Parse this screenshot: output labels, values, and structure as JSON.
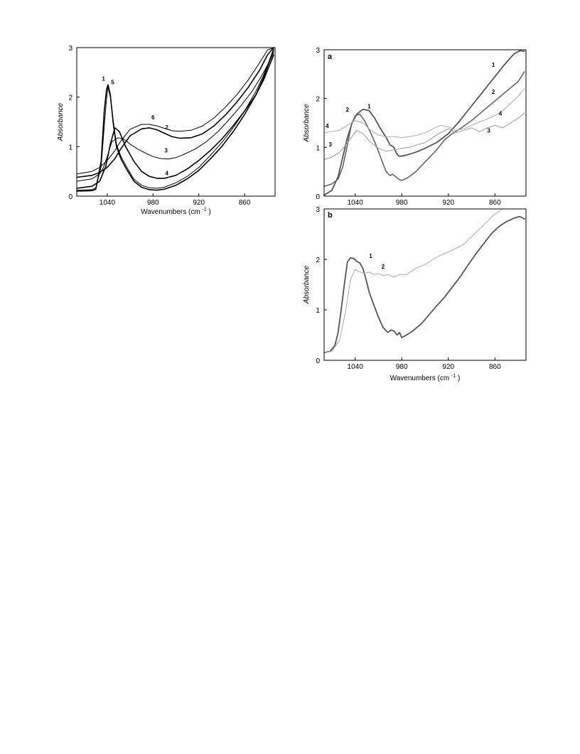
{
  "chart_data": [
    {
      "id": "left",
      "type": "line",
      "xlabel": "Wavenumbers (cm",
      "xlabel_sup": "-1",
      "xlabel_close": ")",
      "ylabel": "Absorbance",
      "xlim": [
        1080,
        820
      ],
      "ylim": [
        0,
        3
      ],
      "x_ticks": [
        {
          "value": 1040,
          "label": "1040"
        },
        {
          "value": 980,
          "label": "980"
        },
        {
          "value": 920,
          "label": "920"
        },
        {
          "value": 860,
          "label": "860"
        }
      ],
      "y_ticks": [
        {
          "value": 0,
          "label": "0"
        },
        {
          "value": 1,
          "label": "1"
        },
        {
          "value": 2,
          "label": "2"
        },
        {
          "value": 3,
          "label": "3"
        }
      ],
      "grid": false,
      "series": [
        {
          "name": "1",
          "color": "#000000",
          "x": [
            1080,
            1060,
            1055,
            1048,
            1044,
            1041,
            1039,
            1036,
            1032,
            1028,
            1022,
            1015,
            1005,
            995,
            985,
            975,
            965,
            950,
            935,
            920,
            905,
            890,
            875,
            860,
            845,
            835,
            828,
            822
          ],
          "y": [
            0.1,
            0.11,
            0.14,
            0.7,
            1.7,
            2.15,
            2.25,
            2.05,
            1.45,
            1.0,
            0.75,
            0.55,
            0.3,
            0.18,
            0.13,
            0.12,
            0.14,
            0.22,
            0.35,
            0.52,
            0.75,
            1.0,
            1.3,
            1.65,
            2.05,
            2.4,
            2.7,
            2.95
          ]
        },
        {
          "name": "5",
          "color": "#000000",
          "x": [
            1080,
            1060,
            1055,
            1048,
            1044,
            1041,
            1039,
            1036,
            1032,
            1028,
            1022,
            1015,
            1005,
            995,
            985,
            975,
            965,
            950,
            935,
            920,
            905,
            890,
            875,
            860,
            845,
            835,
            828,
            822
          ],
          "y": [
            0.12,
            0.13,
            0.17,
            0.6,
            1.4,
            1.95,
            2.2,
            2.0,
            1.5,
            1.05,
            0.8,
            0.6,
            0.34,
            0.22,
            0.17,
            0.16,
            0.18,
            0.27,
            0.4,
            0.58,
            0.82,
            1.08,
            1.38,
            1.72,
            2.12,
            2.45,
            2.72,
            2.98
          ]
        },
        {
          "name": "6",
          "color": "#000000",
          "x": [
            1080,
            1060,
            1050,
            1040,
            1030,
            1022,
            1010,
            995,
            985,
            975,
            965,
            955,
            945,
            930,
            915,
            900,
            885,
            870,
            855,
            840,
            830,
            822
          ],
          "y": [
            0.45,
            0.5,
            0.58,
            0.72,
            0.92,
            1.12,
            1.35,
            1.45,
            1.45,
            1.42,
            1.37,
            1.32,
            1.31,
            1.33,
            1.42,
            1.58,
            1.8,
            2.05,
            2.35,
            2.7,
            2.95,
            3.1
          ]
        },
        {
          "name": "2",
          "color": "#000000",
          "x": [
            1080,
            1060,
            1050,
            1040,
            1030,
            1022,
            1010,
            995,
            985,
            975,
            965,
            955,
            945,
            930,
            915,
            900,
            885,
            870,
            855,
            840,
            830,
            822
          ],
          "y": [
            0.38,
            0.42,
            0.48,
            0.58,
            0.76,
            0.96,
            1.22,
            1.36,
            1.38,
            1.34,
            1.27,
            1.2,
            1.17,
            1.18,
            1.26,
            1.42,
            1.64,
            1.9,
            2.2,
            2.55,
            2.85,
            3.05
          ]
        },
        {
          "name": "3",
          "color": "#000000",
          "x": [
            1080,
            1060,
            1050,
            1045,
            1040,
            1034,
            1026,
            1018,
            1010,
            1000,
            990,
            980,
            970,
            960,
            950,
            940,
            925,
            910,
            895,
            880,
            865,
            850,
            838,
            828,
            822
          ],
          "y": [
            0.3,
            0.35,
            0.45,
            0.58,
            0.8,
            1.1,
            1.18,
            1.15,
            1.05,
            0.95,
            0.87,
            0.8,
            0.76,
            0.75,
            0.78,
            0.84,
            0.95,
            1.1,
            1.3,
            1.55,
            1.82,
            2.12,
            2.42,
            2.7,
            2.9
          ]
        },
        {
          "name": "4",
          "color": "#000000",
          "x": [
            1080,
            1060,
            1050,
            1042,
            1036,
            1030,
            1024,
            1016,
            1005,
            995,
            985,
            975,
            965,
            950,
            935,
            920,
            905,
            890,
            875,
            860,
            845,
            835,
            828,
            822
          ],
          "y": [
            0.16,
            0.2,
            0.3,
            0.6,
            1.05,
            1.38,
            1.3,
            1.0,
            0.7,
            0.5,
            0.4,
            0.36,
            0.36,
            0.42,
            0.55,
            0.72,
            0.92,
            1.15,
            1.42,
            1.72,
            2.05,
            2.35,
            2.62,
            2.85
          ]
        }
      ],
      "curve_labels": [
        {
          "text": "1",
          "x": 1045,
          "y": 2.33
        },
        {
          "text": "5",
          "x": 1033,
          "y": 2.26
        },
        {
          "text": "6",
          "x": 980,
          "y": 1.55
        },
        {
          "text": "2",
          "x": 962,
          "y": 1.35
        },
        {
          "text": "3",
          "x": 963,
          "y": 0.88
        },
        {
          "text": "4",
          "x": 962,
          "y": 0.42
        }
      ]
    },
    {
      "id": "right-a",
      "type": "line",
      "panel": "a",
      "xlabel": "",
      "ylabel": "Absorbance",
      "xlim": [
        1080,
        820
      ],
      "ylim": [
        0,
        3
      ],
      "x_ticks": [
        {
          "value": 1040,
          "label": "1040"
        },
        {
          "value": 980,
          "label": "980"
        },
        {
          "value": 920,
          "label": "920"
        },
        {
          "value": 860,
          "label": "860"
        }
      ],
      "y_ticks": [
        {
          "value": 0,
          "label": "0"
        },
        {
          "value": 1,
          "label": "1"
        },
        {
          "value": 2,
          "label": "2"
        },
        {
          "value": 3,
          "label": "3"
        }
      ],
      "grid": false,
      "series": [
        {
          "name": "1",
          "color": "#555555",
          "x": [
            1080,
            1070,
            1062,
            1056,
            1050,
            1044,
            1038,
            1030,
            1022,
            1015,
            1008,
            1000,
            995,
            990,
            987,
            984,
            980,
            972,
            962,
            950,
            935,
            920,
            905,
            890,
            875,
            860,
            850,
            842,
            835,
            828,
            822
          ],
          "y": [
            0.02,
            0.12,
            0.4,
            0.8,
            1.2,
            1.5,
            1.68,
            1.78,
            1.75,
            1.6,
            1.4,
            1.2,
            1.05,
            1.0,
            0.88,
            0.82,
            0.82,
            0.85,
            0.9,
            0.98,
            1.1,
            1.28,
            1.55,
            1.85,
            2.15,
            2.45,
            2.65,
            2.8,
            2.92,
            2.98,
            2.97
          ]
        },
        {
          "name": "2",
          "color": "#666666",
          "x": [
            1080,
            1070,
            1062,
            1056,
            1050,
            1045,
            1040,
            1034,
            1028,
            1020,
            1012,
            1005,
            1000,
            995,
            992,
            988,
            984,
            980,
            972,
            962,
            950,
            935,
            925,
            915,
            905,
            890,
            875,
            860,
            845,
            830,
            822
          ],
          "y": [
            0.2,
            0.25,
            0.35,
            0.6,
            1.05,
            1.45,
            1.65,
            1.68,
            1.55,
            1.3,
            1.0,
            0.7,
            0.5,
            0.42,
            0.45,
            0.4,
            0.35,
            0.32,
            0.38,
            0.5,
            0.7,
            0.95,
            1.15,
            1.28,
            1.38,
            1.55,
            1.75,
            1.95,
            2.15,
            2.35,
            2.55
          ]
        },
        {
          "name": "4",
          "color": "#aaaaaa",
          "x": [
            1080,
            1060,
            1050,
            1040,
            1030,
            1020,
            1010,
            1000,
            990,
            980,
            970,
            960,
            950,
            940,
            930,
            920,
            910,
            900,
            890,
            880,
            870,
            860,
            850,
            840,
            830,
            822
          ],
          "y": [
            1.3,
            1.35,
            1.45,
            1.55,
            1.5,
            1.35,
            1.25,
            1.22,
            1.22,
            1.2,
            1.22,
            1.25,
            1.3,
            1.38,
            1.45,
            1.42,
            1.35,
            1.38,
            1.45,
            1.52,
            1.58,
            1.65,
            1.75,
            1.9,
            2.05,
            2.2
          ]
        },
        {
          "name": "3",
          "color": "#999999",
          "x": [
            1080,
            1070,
            1060,
            1052,
            1045,
            1038,
            1030,
            1020,
            1010,
            1000,
            990,
            980,
            970,
            960,
            950,
            940,
            930,
            920,
            910,
            900,
            890,
            880,
            870,
            860,
            850,
            840,
            830,
            822
          ],
          "y": [
            0.75,
            0.8,
            0.9,
            1.05,
            1.2,
            1.35,
            1.28,
            1.1,
            0.98,
            0.92,
            0.95,
            0.98,
            1.0,
            1.05,
            1.1,
            1.2,
            1.3,
            1.38,
            1.3,
            1.35,
            1.4,
            1.32,
            1.4,
            1.45,
            1.4,
            1.5,
            1.6,
            1.7
          ]
        }
      ],
      "curve_labels": [
        {
          "text": "1",
          "x": 1022,
          "y": 1.8
        },
        {
          "text": "2",
          "x": 1050,
          "y": 1.73
        },
        {
          "text": "4",
          "x": 1076,
          "y": 1.4
        },
        {
          "text": "3",
          "x": 1072,
          "y": 1.02
        },
        {
          "text": "1",
          "x": 862,
          "y": 2.65
        },
        {
          "text": "2",
          "x": 862,
          "y": 2.1
        },
        {
          "text": "4",
          "x": 853,
          "y": 1.65
        },
        {
          "text": "3",
          "x": 868,
          "y": 1.3
        }
      ]
    },
    {
      "id": "right-b",
      "type": "line",
      "panel": "b",
      "xlabel": "Wavenumbers (cm",
      "xlabel_sup": "-1",
      "xlabel_close": ")",
      "ylabel": "Absorbance",
      "xlim": [
        1080,
        820
      ],
      "ylim": [
        0,
        3
      ],
      "x_ticks": [
        {
          "value": 1040,
          "label": "1040"
        },
        {
          "value": 980,
          "label": "980"
        },
        {
          "value": 920,
          "label": "920"
        },
        {
          "value": 860,
          "label": "860"
        }
      ],
      "y_ticks": [
        {
          "value": 0,
          "label": "0"
        },
        {
          "value": 1,
          "label": "1"
        },
        {
          "value": 2,
          "label": "2"
        },
        {
          "value": 3,
          "label": "3"
        }
      ],
      "grid": false,
      "series": [
        {
          "name": "1",
          "color": "#555555",
          "x": [
            1080,
            1072,
            1066,
            1062,
            1058,
            1054,
            1050,
            1046,
            1042,
            1038,
            1034,
            1030,
            1026,
            1022,
            1016,
            1010,
            1004,
            998,
            994,
            990,
            986,
            983,
            980,
            974,
            966,
            955,
            945,
            935,
            925,
            915,
            905,
            895,
            885,
            875,
            865,
            855,
            845,
            835,
            828,
            822
          ],
          "y": [
            0.15,
            0.18,
            0.3,
            0.55,
            1.0,
            1.5,
            1.95,
            2.03,
            2.02,
            1.96,
            1.93,
            1.82,
            1.6,
            1.35,
            1.1,
            0.85,
            0.65,
            0.55,
            0.6,
            0.58,
            0.5,
            0.55,
            0.45,
            0.5,
            0.58,
            0.72,
            0.9,
            1.08,
            1.25,
            1.45,
            1.65,
            1.88,
            2.1,
            2.3,
            2.5,
            2.65,
            2.75,
            2.82,
            2.85,
            2.8
          ]
        },
        {
          "name": "2",
          "color": "#aaaaaa",
          "x": [
            1080,
            1070,
            1060,
            1052,
            1046,
            1040,
            1034,
            1028,
            1022,
            1016,
            1010,
            1004,
            998,
            990,
            982,
            974,
            966,
            958,
            950,
            940,
            930,
            920,
            910,
            900,
            890,
            880,
            870,
            862,
            855,
            850
          ],
          "y": [
            0.15,
            0.18,
            0.4,
            1.0,
            1.6,
            1.8,
            1.75,
            1.72,
            1.75,
            1.7,
            1.72,
            1.68,
            1.7,
            1.65,
            1.7,
            1.7,
            1.78,
            1.85,
            1.9,
            2.0,
            2.08,
            2.15,
            2.22,
            2.3,
            2.45,
            2.6,
            2.75,
            2.88,
            2.95,
            3.0
          ]
        }
      ],
      "curve_labels": [
        {
          "text": "1",
          "x": 1020,
          "y": 2.03
        },
        {
          "text": "2",
          "x": 1004,
          "y": 1.82
        }
      ]
    }
  ]
}
